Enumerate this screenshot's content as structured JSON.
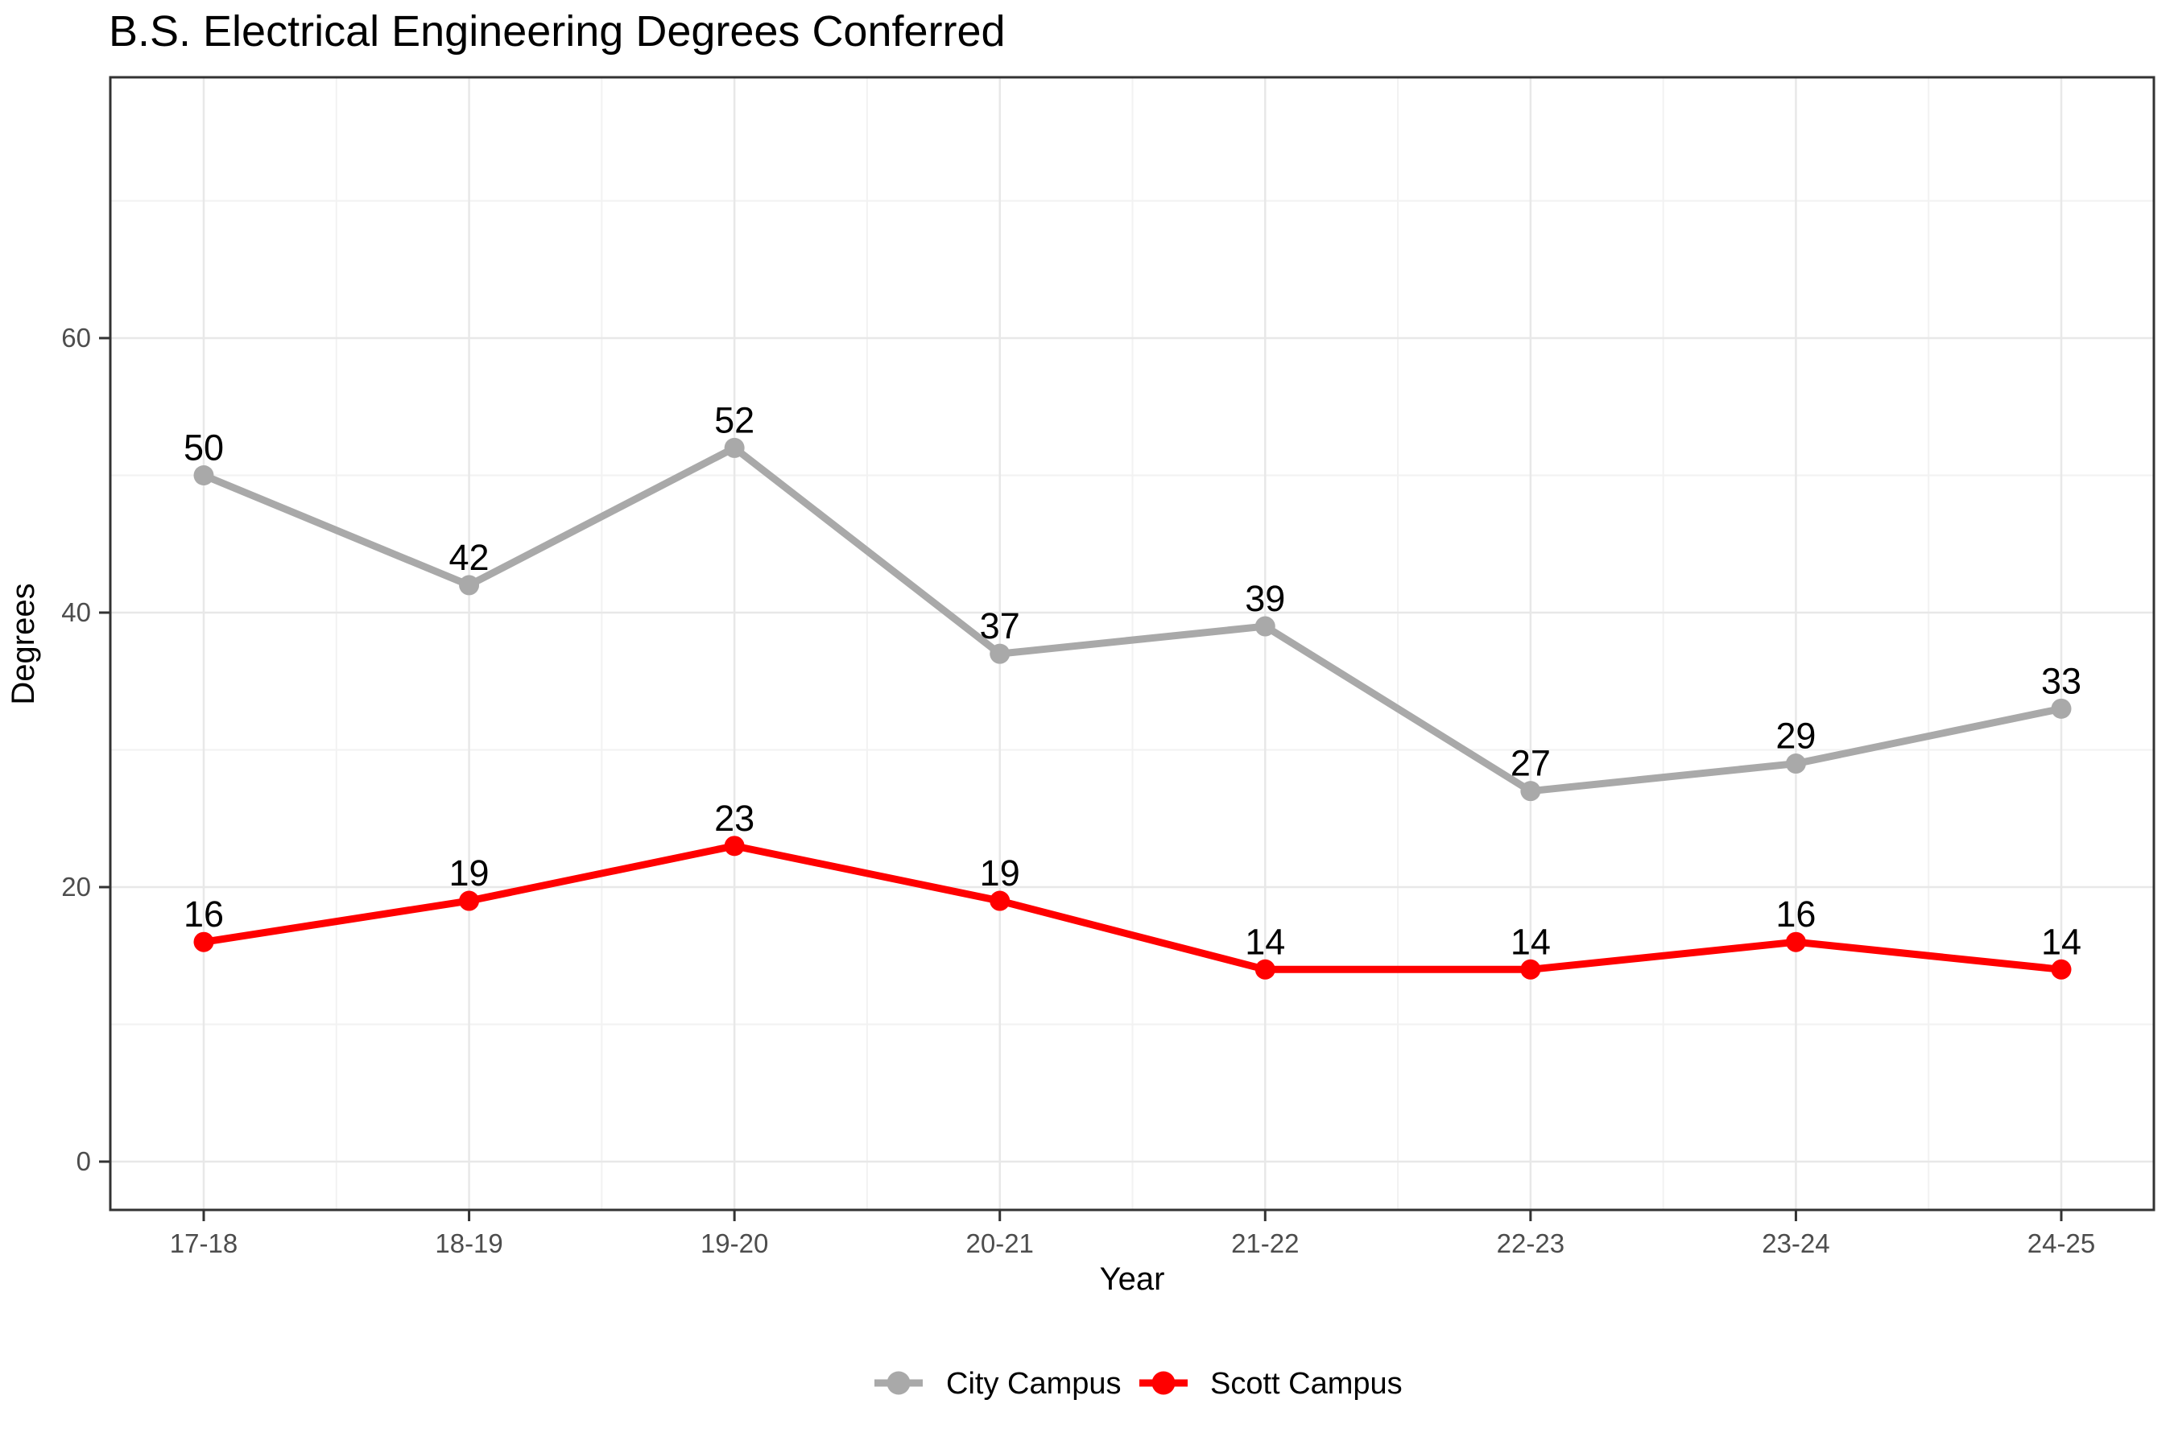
{
  "chart_data": {
    "type": "line",
    "title": "B.S. Electrical Engineering Degrees Conferred",
    "xlabel": "Year",
    "ylabel": "Degrees",
    "categories": [
      "17-18",
      "18-19",
      "19-20",
      "20-21",
      "21-22",
      "22-23",
      "23-24",
      "24-25"
    ],
    "series": [
      {
        "name": "City Campus",
        "color": "#A9A9A9",
        "values": [
          50,
          42,
          52,
          37,
          39,
          27,
          29,
          33
        ]
      },
      {
        "name": "Scott Campus",
        "color": "#FF0000",
        "values": [
          16,
          19,
          23,
          19,
          14,
          14,
          16,
          14
        ]
      }
    ],
    "yticks": [
      0,
      20,
      40,
      60
    ],
    "yticks_minor": [
      10,
      30,
      50,
      70
    ],
    "ylim": [
      -3.5,
      79
    ],
    "grid": "major+minor horizontal and vertical on white panel",
    "legend_position": "bottom-center",
    "point_labels": true
  },
  "colors": {
    "background": "#FFFFFF",
    "panel_border": "#333333",
    "axis_tick": "#333333",
    "grid_major": "#E8E8E8",
    "grid_minor": "#F2F2F2",
    "tick_label": "#4D4D4D",
    "point_label": "#000000",
    "axis_title": "#000000",
    "title": "#000000"
  }
}
